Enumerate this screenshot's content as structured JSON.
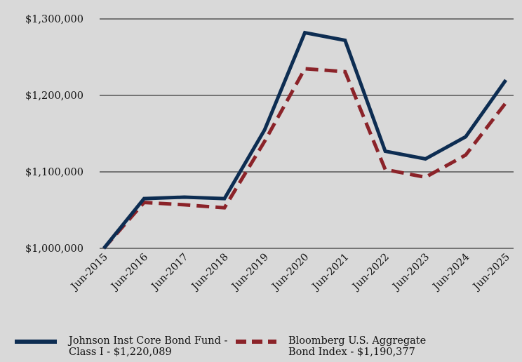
{
  "chart_data": {
    "type": "line",
    "x": [
      "Jun-2015",
      "Jun-2016",
      "Jun-2017",
      "Jun-2018",
      "Jun-2019",
      "Jun-2020",
      "Jun-2021",
      "Jun-2022",
      "Jun-2023",
      "Jun-2024",
      "Jun-2025"
    ],
    "y_ticks": [
      "$1,000,000",
      "$1,100,000",
      "$1,200,000",
      "$1,300,000"
    ],
    "ylim": [
      1000000,
      1300000
    ],
    "grid": true,
    "legend_position": "bottom",
    "series": [
      {
        "name": "Johnson Inst Core Bond Fund - Class I - $1,220,089",
        "color": "#0d2d52",
        "style": "solid",
        "values": [
          1000000,
          1065000,
          1067000,
          1065000,
          1155000,
          1282000,
          1272000,
          1127000,
          1117000,
          1146000,
          1220089
        ]
      },
      {
        "name": "Bloomberg U.S. Aggregate Bond Index - $1,190,377",
        "color": "#8b2329",
        "style": "dashed",
        "values": [
          1000000,
          1060000,
          1057000,
          1053000,
          1140000,
          1235000,
          1231000,
          1103000,
          1093000,
          1122000,
          1190377
        ]
      }
    ]
  }
}
